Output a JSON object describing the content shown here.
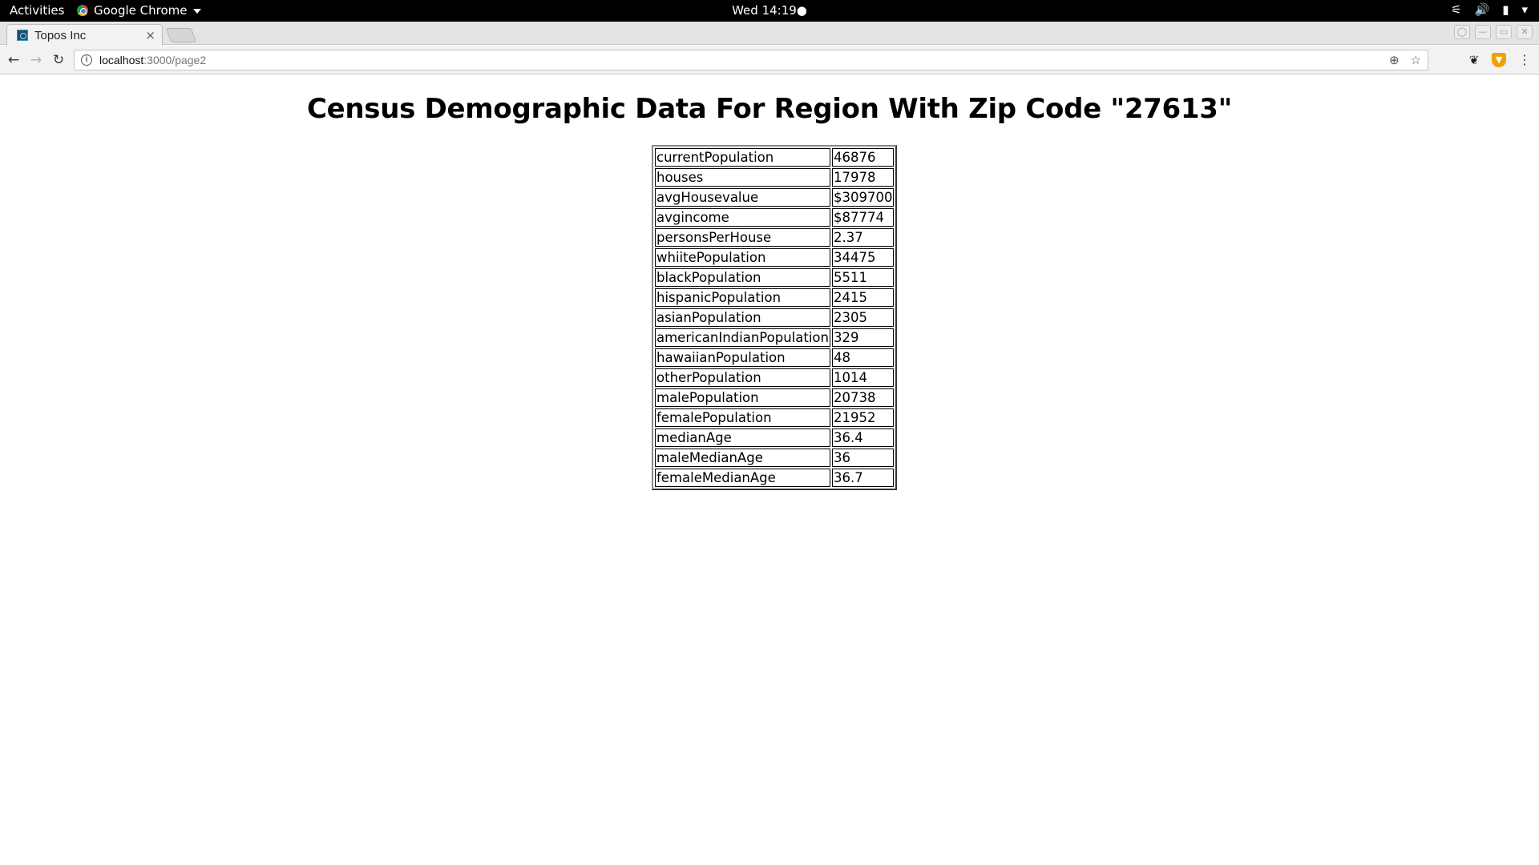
{
  "topbar": {
    "activities": "Activities",
    "app_name": "Google Chrome",
    "clock": "Wed 14:19●"
  },
  "browser": {
    "tab_title": "Topos Inc",
    "tab_close": "×",
    "url_host": "localhost",
    "url_path": ":3000/page2"
  },
  "page": {
    "title": "Census Demographic Data For Region With Zip Code \"27613\"",
    "rows": [
      {
        "key": "currentPopulation",
        "value": "46876"
      },
      {
        "key": "houses",
        "value": "17978"
      },
      {
        "key": "avgHousevalue",
        "value": "$309700"
      },
      {
        "key": "avgincome",
        "value": "$87774"
      },
      {
        "key": "personsPerHouse",
        "value": "2.37"
      },
      {
        "key": "whiitePopulation",
        "value": "34475"
      },
      {
        "key": "blackPopulation",
        "value": "5511"
      },
      {
        "key": "hispanicPopulation",
        "value": "2415"
      },
      {
        "key": "asianPopulation",
        "value": "2305"
      },
      {
        "key": "americanIndianPopulation",
        "value": "329"
      },
      {
        "key": "hawaiianPopulation",
        "value": "48"
      },
      {
        "key": "otherPopulation",
        "value": "1014"
      },
      {
        "key": "malePopulation",
        "value": "20738"
      },
      {
        "key": "femalePopulation",
        "value": "21952"
      },
      {
        "key": "medianAge",
        "value": "36.4"
      },
      {
        "key": "maleMedianAge",
        "value": "36"
      },
      {
        "key": "femaleMedianAge",
        "value": "36.7"
      }
    ]
  }
}
